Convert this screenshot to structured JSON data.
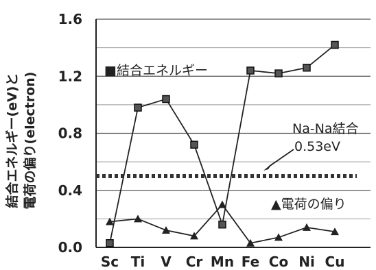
{
  "chart_data": {
    "type": "line",
    "categories": [
      "Sc",
      "Ti",
      "V",
      "Cr",
      "Mn",
      "Fe",
      "Co",
      "Ni",
      "Cu"
    ],
    "ylim": [
      0,
      1.6
    ],
    "yticks": [
      "0.0",
      "0.4",
      "0.8",
      "1.2",
      "1.6"
    ],
    "ylabel_lines": [
      "結合エネルギー(eV)と",
      "電荷の偏り(electron)"
    ],
    "series": [
      {
        "name": "■結合エネルギー",
        "marker": "square",
        "values": [
          0.03,
          0.98,
          1.04,
          0.72,
          0.16,
          1.24,
          1.22,
          1.26,
          1.42
        ]
      },
      {
        "name": "▲電荷の偏り",
        "marker": "triangle",
        "values": [
          0.18,
          0.2,
          0.12,
          0.08,
          0.3,
          0.03,
          0.07,
          0.14,
          0.11
        ]
      }
    ],
    "reference": {
      "value": 0.5,
      "label": "Na-Na結合",
      "value_label": "0.53eV"
    },
    "grid": true
  }
}
